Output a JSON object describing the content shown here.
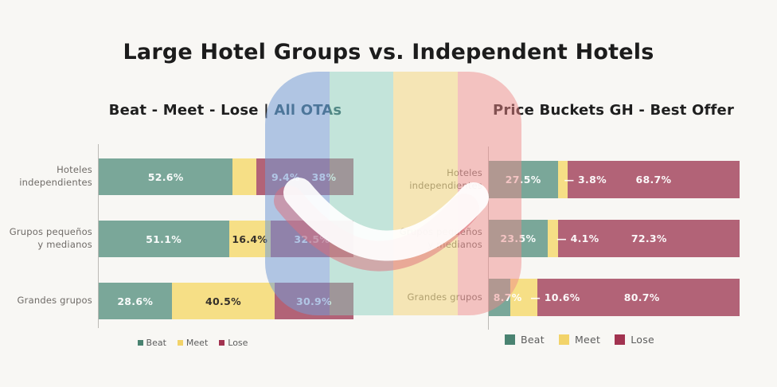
{
  "title": "Large Hotel Groups vs. Independent Hotels",
  "colors": {
    "background": "#f8f7f4",
    "series": {
      "Beat": "#7aa799",
      "Meet": "#f6df86",
      "Lose": "#b26377"
    },
    "legend_swatches": {
      "Beat": "#4a8371",
      "Meet": "#f2d369",
      "Lose": "#a23350"
    },
    "subtitle_highlight": "#1d4752",
    "watermark_stripes": [
      "rgba(116,156,214,0.55)",
      "rgba(138,206,190,0.48)",
      "rgba(242,212,118,0.5)",
      "rgba(238,136,136,0.48)"
    ],
    "watermark_smile": "rgba(255,255,255,0.92)",
    "watermark_smile_shadow": "rgba(222,110,122,0.5)"
  },
  "chart_data": [
    {
      "type": "bar",
      "orientation": "horizontal",
      "stacked": true,
      "title": "Beat - Meet - Lose | All OTAs",
      "title_parts": {
        "prefix": "Beat - Meet - Lose | ",
        "highlight": "All OTAs"
      },
      "categories": [
        "Hoteles independientes",
        "Grupos pequeños y medianos",
        "Grandes grupos"
      ],
      "category_lines": [
        [
          "Hoteles",
          "independientes"
        ],
        [
          "Grupos pequeños",
          "y medianos"
        ],
        [
          "Grandes grupos"
        ]
      ],
      "series": [
        {
          "name": "Beat",
          "values": [
            52.6,
            51.1,
            28.6
          ]
        },
        {
          "name": "Meet",
          "values": [
            9.4,
            16.4,
            40.5
          ]
        },
        {
          "name": "Lose",
          "values": [
            38.0,
            32.5,
            30.9
          ]
        }
      ],
      "xlim": [
        0,
        100
      ],
      "legend": [
        "Beat",
        "Meet",
        "Lose"
      ],
      "legend_position": "bottom",
      "grid": false,
      "labels": [
        [
          {
            "text": "52.6%",
            "x": 26.3,
            "dark": false
          },
          {
            "text": "9.4%",
            "x": 73.4,
            "dark": false
          },
          {
            "text": "38%",
            "x": 88.4,
            "dark": false
          }
        ],
        [
          {
            "text": "51.1%",
            "x": 25.5,
            "dark": false
          },
          {
            "text": "16.4%",
            "x": 59.3,
            "dark": true
          },
          {
            "text": "32.5%",
            "x": 83.7,
            "dark": false
          }
        ],
        [
          {
            "text": "28.6%",
            "x": 14.3,
            "dark": false
          },
          {
            "text": "40.5%",
            "x": 48.9,
            "dark": true
          },
          {
            "text": "30.9%",
            "x": 84.5,
            "dark": false
          }
        ]
      ]
    },
    {
      "type": "bar",
      "orientation": "horizontal",
      "stacked": true,
      "title": "Price Buckets GH - Best Offer",
      "title_parts": {
        "prefix": "Price Buckets GH - Best Offer",
        "highlight": ""
      },
      "categories": [
        "Hoteles independientes",
        "Grupos pequeños y medianos",
        "Grandes grupos"
      ],
      "category_lines": [
        [
          "Hoteles",
          "independientes"
        ],
        [
          "Grupos pequeños",
          "y medianos"
        ],
        [
          "Grandes grupos"
        ]
      ],
      "series": [
        {
          "name": "Beat",
          "values": [
            27.5,
            23.5,
            8.7
          ]
        },
        {
          "name": "Meet",
          "values": [
            3.8,
            4.1,
            10.6
          ]
        },
        {
          "name": "Lose",
          "values": [
            68.7,
            72.3,
            80.7
          ]
        }
      ],
      "xlim": [
        0,
        100
      ],
      "legend": [
        "Beat",
        "Meet",
        "Lose"
      ],
      "legend_position": "bottom",
      "grid": false,
      "labels": [
        [
          {
            "text": "27.5%",
            "x": 13.7,
            "dark": false
          },
          {
            "text": "— 3.8%",
            "x": 38.5,
            "dark": false
          },
          {
            "text": "68.7%",
            "x": 65.7,
            "dark": false
          }
        ],
        [
          {
            "text": "23.5%",
            "x": 11.7,
            "dark": false
          },
          {
            "text": "— 4.1%",
            "x": 35.5,
            "dark": false
          },
          {
            "text": "72.3%",
            "x": 63.9,
            "dark": false
          }
        ],
        [
          {
            "text": "8.7%",
            "x": 7.5,
            "dark": false
          },
          {
            "text": "— 10.6%",
            "x": 26.5,
            "dark": false
          },
          {
            "text": "80.7%",
            "x": 61.0,
            "dark": false
          }
        ]
      ]
    }
  ]
}
